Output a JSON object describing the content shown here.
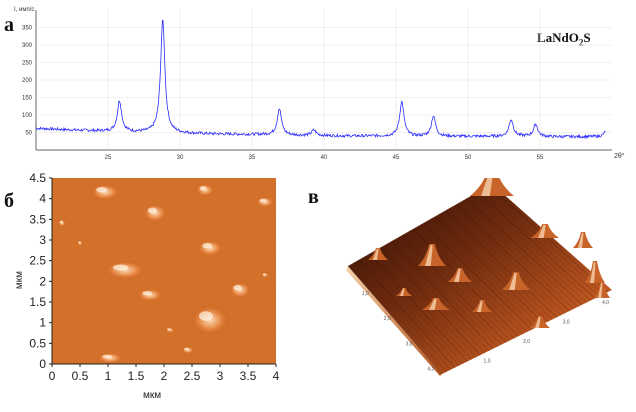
{
  "panels": {
    "a": {
      "label": "а"
    },
    "b": {
      "label": "б"
    },
    "c": {
      "label": "в"
    }
  },
  "compound": {
    "prefix": "LaNdO",
    "sub": "2",
    "suffix": "S"
  },
  "chart_data": [
    {
      "type": "line",
      "panel": "а",
      "ylabel": "I, имп/с",
      "xlabel": "2θ°",
      "xlim": [
        20,
        60
      ],
      "ylim": [
        0,
        400
      ],
      "xticks": [
        25,
        30,
        35,
        40,
        45,
        50,
        55
      ],
      "yticks": [
        50,
        100,
        150,
        200,
        250,
        300,
        350
      ],
      "color": "#2a2aff",
      "baseline": [
        [
          20,
          62
        ],
        [
          22,
          58
        ],
        [
          24,
          55
        ],
        [
          26,
          52
        ],
        [
          28,
          50
        ],
        [
          30,
          48
        ],
        [
          32,
          46
        ],
        [
          34,
          45
        ],
        [
          36,
          44
        ],
        [
          38,
          42
        ],
        [
          40,
          41
        ],
        [
          42,
          40
        ],
        [
          44,
          40
        ],
        [
          46,
          39
        ],
        [
          48,
          39
        ],
        [
          50,
          39
        ],
        [
          52,
          39
        ],
        [
          54,
          39
        ],
        [
          56,
          38
        ],
        [
          58,
          38
        ],
        [
          59.5,
          38
        ]
      ],
      "peaks": [
        {
          "x": 25.8,
          "height": 140
        },
        {
          "x": 28.8,
          "height": 372
        },
        {
          "x": 36.9,
          "height": 118
        },
        {
          "x": 39.3,
          "height": 57
        },
        {
          "x": 45.4,
          "height": 138
        },
        {
          "x": 47.6,
          "height": 97
        },
        {
          "x": 53.0,
          "height": 87
        },
        {
          "x": 54.7,
          "height": 73
        },
        {
          "x": 59.6,
          "height": 55
        }
      ]
    },
    {
      "type": "heatmap",
      "panel": "б",
      "ylabel": "мкм",
      "xlabel": "мкм",
      "xlim": [
        0,
        4.0
      ],
      "ylim": [
        0,
        4.5
      ],
      "xticks": [
        "0",
        "0.5",
        "1",
        "1.5",
        "2",
        "2.5",
        "3",
        "3.5",
        "4"
      ],
      "yticks": [
        "0",
        "0.5",
        "1",
        "1.5",
        "2",
        "2.5",
        "3",
        "3.5",
        "4",
        "4.5"
      ],
      "colormap": [
        "#b84a10",
        "#d4681e",
        "#f0a060",
        "#ffd9b0"
      ]
    },
    {
      "type": "surface",
      "panel": "в",
      "axis_ticks_left": [
        "1,0",
        "2,0",
        "3,0",
        "4,0"
      ],
      "axis_ticks_right": [
        "1,0",
        "2,0",
        "3,0",
        "4,0"
      ],
      "colormap": [
        "#3a1206",
        "#8a3a14",
        "#c8652a",
        "#f0c8a0"
      ]
    }
  ]
}
